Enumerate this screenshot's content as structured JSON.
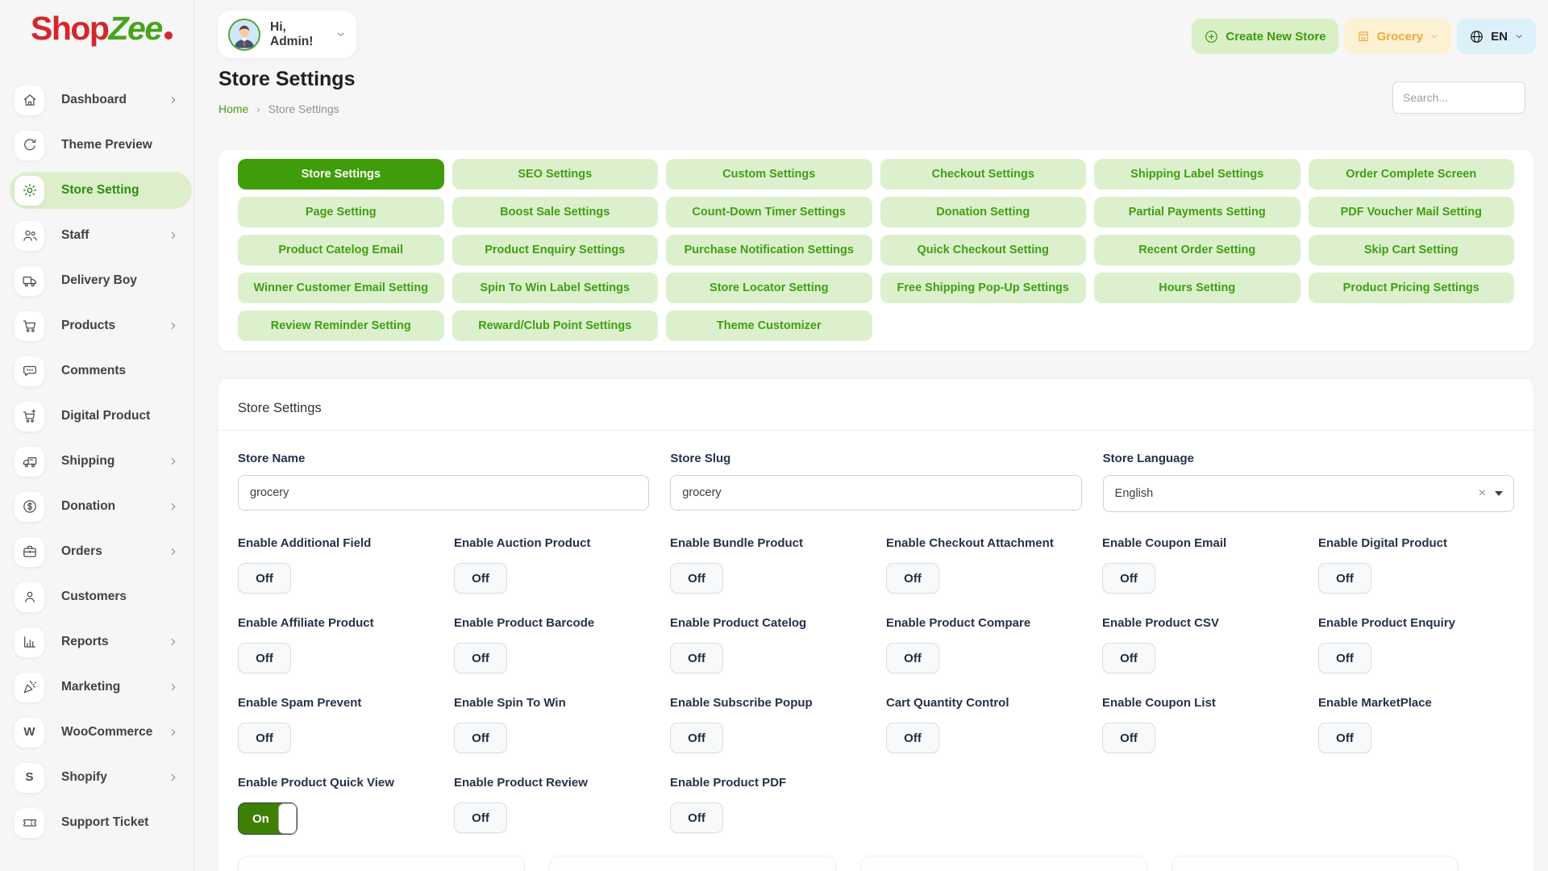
{
  "brand": {
    "part1": "Shop",
    "part2": "Zee"
  },
  "topbar": {
    "greeting": "Hi, Admin!",
    "create_button": "Create New Store",
    "store_name": "Grocery",
    "language": "EN"
  },
  "page": {
    "title": "Store Settings",
    "breadcrumb": [
      "Home",
      "Store Settings"
    ],
    "search_placeholder": "Search..."
  },
  "colors": {
    "accent_green": "#3f9d0a",
    "light_green": "#ddf0cd",
    "sidebar_active_bg": "#dcefca",
    "brand_red": "#d6262c",
    "store_btn_orange": "#eda93a",
    "lang_btn_blue": "#dcf0fa",
    "toggle_on_green": "#3e8004"
  },
  "sidebar": {
    "items": [
      {
        "label": "Dashboard",
        "icon": "home-icon",
        "chevron": true,
        "active": false
      },
      {
        "label": "Theme Preview",
        "icon": "theme-preview-icon",
        "chevron": false,
        "active": false
      },
      {
        "label": "Store Setting",
        "icon": "gear-icon",
        "chevron": false,
        "active": true
      },
      {
        "label": "Staff",
        "icon": "staff-icon",
        "chevron": true,
        "active": false
      },
      {
        "label": "Delivery Boy",
        "icon": "delivery-truck-icon",
        "chevron": false,
        "active": false
      },
      {
        "label": "Products",
        "icon": "cart-icon",
        "chevron": true,
        "active": false
      },
      {
        "label": "Comments",
        "icon": "comment-icon",
        "chevron": false,
        "active": false
      },
      {
        "label": "Digital Product",
        "icon": "cart-plus-icon",
        "chevron": false,
        "active": false
      },
      {
        "label": "Shipping",
        "icon": "shipping-truck-icon",
        "chevron": true,
        "active": false
      },
      {
        "label": "Donation",
        "icon": "donation-icon",
        "chevron": true,
        "active": false
      },
      {
        "label": "Orders",
        "icon": "orders-icon",
        "chevron": true,
        "active": false
      },
      {
        "label": "Customers",
        "icon": "customer-icon",
        "chevron": false,
        "active": false
      },
      {
        "label": "Reports",
        "icon": "reports-icon",
        "chevron": true,
        "active": false
      },
      {
        "label": "Marketing",
        "icon": "marketing-icon",
        "chevron": true,
        "active": false
      },
      {
        "label": "WooCommerce",
        "icon": "woocommerce-icon",
        "chevron": true,
        "active": false
      },
      {
        "label": "Shopify",
        "icon": "shopify-icon",
        "chevron": true,
        "active": false
      },
      {
        "label": "Support Ticket",
        "icon": "ticket-icon",
        "chevron": false,
        "active": false
      }
    ]
  },
  "tabs": {
    "items": [
      {
        "label": "Store Settings",
        "active": true
      },
      {
        "label": "SEO Settings",
        "active": false
      },
      {
        "label": "Custom Settings",
        "active": false
      },
      {
        "label": "Checkout Settings",
        "active": false
      },
      {
        "label": "Shipping Label Settings",
        "active": false
      },
      {
        "label": "Order Complete Screen",
        "active": false
      },
      {
        "label": "Page Setting",
        "active": false
      },
      {
        "label": "Boost Sale Settings",
        "active": false
      },
      {
        "label": "Count-Down Timer Settings",
        "active": false
      },
      {
        "label": "Donation Setting",
        "active": false
      },
      {
        "label": "Partial Payments Setting",
        "active": false
      },
      {
        "label": "PDF Voucher Mail Setting",
        "active": false
      },
      {
        "label": "Product Catelog Email",
        "active": false
      },
      {
        "label": "Product Enquiry Settings",
        "active": false
      },
      {
        "label": "Purchase Notification Settings",
        "active": false
      },
      {
        "label": "Quick Checkout Setting",
        "active": false
      },
      {
        "label": "Recent Order Setting",
        "active": false
      },
      {
        "label": "Skip Cart Setting",
        "active": false
      },
      {
        "label": "Winner Customer Email Setting",
        "active": false
      },
      {
        "label": "Spin To Win Label Settings",
        "active": false
      },
      {
        "label": "Store Locator Setting",
        "active": false
      },
      {
        "label": "Free Shipping Pop-Up Settings",
        "active": false
      },
      {
        "label": "Hours Setting",
        "active": false
      },
      {
        "label": "Product Pricing Settings",
        "active": false
      },
      {
        "label": "Review Reminder Setting",
        "active": false
      },
      {
        "label": "Reward/Club Point Settings",
        "active": false
      },
      {
        "label": "Theme Customizer",
        "active": false
      }
    ]
  },
  "form": {
    "card_title": "Store Settings",
    "fields": [
      {
        "label": "Store Name",
        "value": "grocery",
        "type": "text"
      },
      {
        "label": "Store Slug",
        "value": "grocery",
        "type": "text"
      },
      {
        "label": "Store Language",
        "value": "English",
        "type": "select"
      }
    ],
    "toggles": [
      {
        "label": "Enable Additional Field",
        "state": "Off"
      },
      {
        "label": "Enable Auction Product",
        "state": "Off"
      },
      {
        "label": "Enable Bundle Product",
        "state": "Off"
      },
      {
        "label": "Enable Checkout Attachment",
        "state": "Off"
      },
      {
        "label": "Enable Coupon Email",
        "state": "Off"
      },
      {
        "label": "Enable Digital Product",
        "state": "Off"
      },
      {
        "label": "Enable Affiliate Product",
        "state": "Off"
      },
      {
        "label": "Enable Product Barcode",
        "state": "Off"
      },
      {
        "label": "Enable Product Catelog",
        "state": "Off"
      },
      {
        "label": "Enable Product Compare",
        "state": "Off"
      },
      {
        "label": "Enable Product CSV",
        "state": "Off"
      },
      {
        "label": "Enable Product Enquiry",
        "state": "Off"
      },
      {
        "label": "Enable Spam Prevent",
        "state": "Off"
      },
      {
        "label": "Enable Spin To Win",
        "state": "Off"
      },
      {
        "label": "Enable Subscribe Popup",
        "state": "Off"
      },
      {
        "label": "Cart Quantity Control",
        "state": "Off"
      },
      {
        "label": "Enable Coupon List",
        "state": "Off"
      },
      {
        "label": "Enable MarketPlace",
        "state": "Off"
      },
      {
        "label": "Enable Product Quick View",
        "state": "On"
      },
      {
        "label": "Enable Product Review",
        "state": "Off"
      },
      {
        "label": "Enable Product PDF",
        "state": "Off"
      }
    ]
  }
}
